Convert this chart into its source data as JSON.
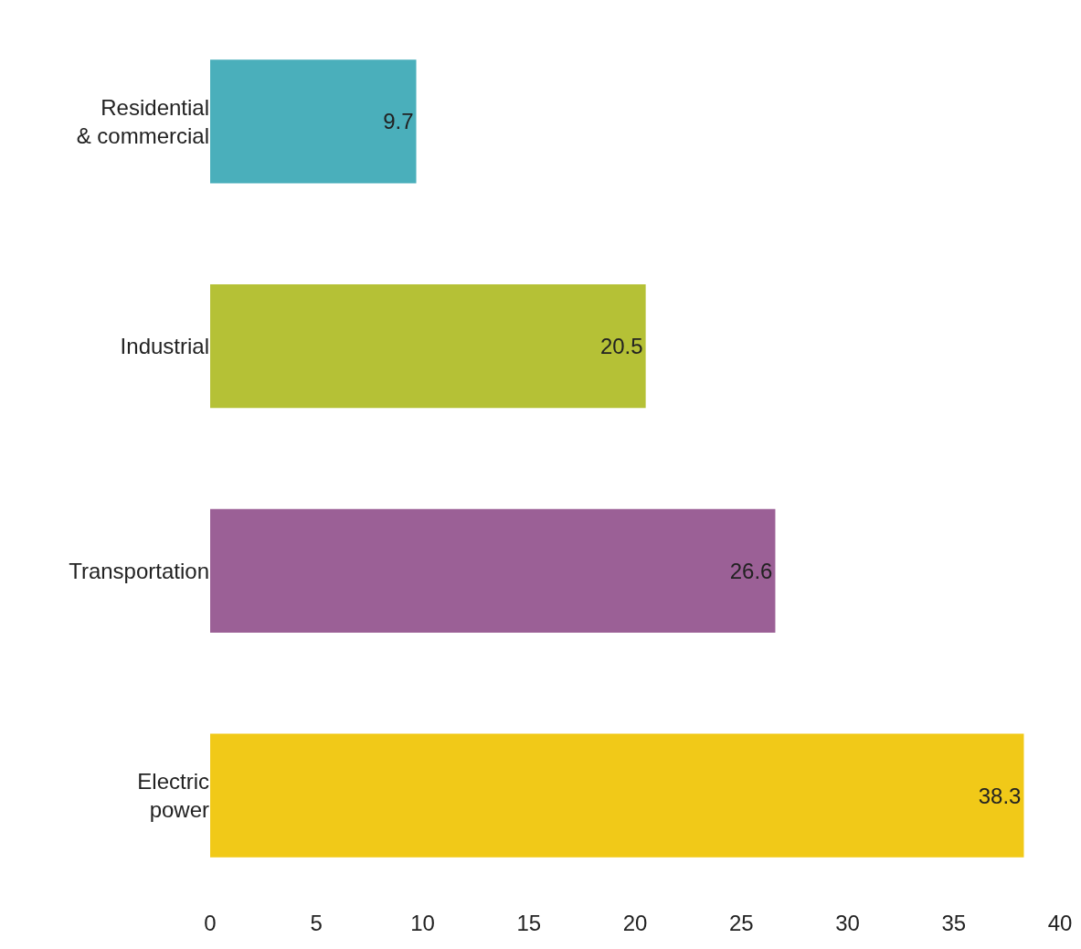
{
  "chart_data": {
    "type": "bar",
    "orientation": "horizontal",
    "categories": [
      "Residential\n& commercial",
      "Industrial",
      "Transportation",
      "Electric\npower"
    ],
    "values": [
      9.7,
      20.5,
      26.6,
      38.3
    ],
    "colors": [
      "#4aafbb",
      "#b5c136",
      "#9b6096",
      "#f1c918"
    ],
    "xlim": [
      0,
      40
    ],
    "xticks": [
      0,
      5,
      10,
      15,
      20,
      25,
      30,
      35,
      40
    ],
    "data_labels": true
  }
}
